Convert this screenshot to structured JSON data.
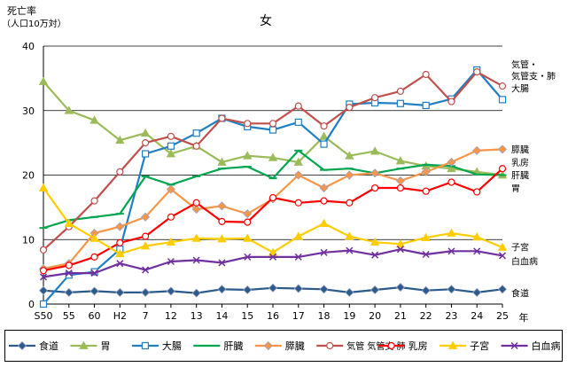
{
  "chart_data": {
    "type": "line",
    "title": "女",
    "ylabel_line1": "死亡率",
    "ylabel_line2": "（人口10万対）",
    "xlabel": "年",
    "ylim": [
      0,
      40
    ],
    "yticks": [
      0,
      10,
      20,
      30,
      40
    ],
    "categories": [
      "S50",
      "55",
      "60",
      "H2",
      "7",
      "12",
      "13",
      "14",
      "15",
      "16",
      "17",
      "18",
      "19",
      "20",
      "21",
      "22",
      "23",
      "24",
      "25"
    ],
    "series": [
      {
        "name": "食道",
        "color": "#2a5b8c",
        "marker": "diamond",
        "values": [
          2.1,
          1.8,
          2.0,
          1.8,
          1.8,
          2.0,
          1.7,
          2.3,
          2.2,
          2.5,
          2.4,
          2.3,
          1.8,
          2.2,
          2.6,
          2.1,
          2.3,
          1.8,
          2.3
        ]
      },
      {
        "name": "胃",
        "color": "#9bbb59",
        "marker": "triangle",
        "values": [
          34.5,
          30.0,
          28.5,
          25.4,
          26.5,
          23.3,
          24.5,
          22.0,
          23.0,
          22.7,
          22.0,
          26.0,
          23.0,
          23.7,
          22.2,
          21.4,
          21.0,
          20.5,
          20.0
        ]
      },
      {
        "name": "大腸",
        "color": "#1f7fc2",
        "marker": "square",
        "values": [
          0,
          4.5,
          5.0,
          8.5,
          23.3,
          24.5,
          26.5,
          28.8,
          27.5,
          27.0,
          28.2,
          24.8,
          31.0,
          31.2,
          31.1,
          30.8,
          31.8,
          36.3,
          31.7
        ]
      },
      {
        "name": "肝臓",
        "color": "#00a550",
        "marker": "dash",
        "values": [
          11.8,
          13.0,
          13.5,
          14.0,
          19.8,
          18.5,
          19.8,
          21.0,
          21.3,
          19.5,
          23.8,
          20.8,
          21.0,
          20.3,
          21.0,
          21.6,
          21.4,
          20.1,
          20.0
        ]
      },
      {
        "name": "膵臓",
        "color": "#f79646",
        "marker": "diamond",
        "values": [
          5.5,
          6.3,
          11.0,
          12.0,
          13.5,
          17.8,
          14.7,
          15.2,
          14.0,
          16.3,
          20.0,
          18.0,
          20.0,
          20.3,
          19.1,
          20.5,
          22.0,
          23.8,
          24.0
        ]
      },
      {
        "name": "気管 気管支 肺",
        "color": "#c0504d",
        "marker": "circle",
        "values": [
          8.4,
          12.0,
          16.0,
          20.5,
          25.0,
          26.0,
          24.5,
          28.8,
          28.0,
          28.0,
          30.7,
          27.6,
          30.5,
          32.0,
          33.0,
          35.6,
          31.4,
          36.0,
          33.8
        ]
      },
      {
        "name": "乳房",
        "color": "#ff0000",
        "marker": "circle",
        "values": [
          5.2,
          6.0,
          7.3,
          9.5,
          10.5,
          13.5,
          15.7,
          12.8,
          12.7,
          16.5,
          15.7,
          16.0,
          15.7,
          18.0,
          18.0,
          17.5,
          18.9,
          17.4,
          21.0
        ]
      },
      {
        "name": "子宮",
        "color": "#ffcc00",
        "marker": "triangle",
        "values": [
          18.0,
          12.5,
          10.2,
          7.8,
          9.0,
          9.6,
          10.2,
          10.1,
          10.2,
          8.0,
          10.5,
          12.5,
          10.5,
          9.6,
          9.3,
          10.3,
          11.0,
          10.4,
          8.8
        ]
      },
      {
        "name": "白血病",
        "color": "#7030a0",
        "marker": "x",
        "values": [
          4.2,
          4.8,
          4.8,
          6.3,
          5.3,
          6.6,
          6.8,
          6.4,
          7.3,
          7.3,
          7.3,
          8.0,
          8.3,
          7.6,
          8.5,
          7.7,
          8.2,
          8.2,
          7.5
        ]
      }
    ],
    "right_labels": [
      {
        "text": "気管・",
        "value": 37.2
      },
      {
        "text": "気管支・肺",
        "value": 35.4
      },
      {
        "text": "大腸",
        "value": 33.5
      },
      {
        "text": "膵臓",
        "value": 24.0
      },
      {
        "text": "乳房",
        "value": 22.0
      },
      {
        "text": "肝臓",
        "value": 20.0
      },
      {
        "text": "胃",
        "value": 18.0
      },
      {
        "text": "子宮",
        "value": 8.9
      },
      {
        "text": "白血病",
        "value": 6.7
      },
      {
        "text": "食道",
        "value": 1.7
      }
    ],
    "grid": true,
    "legend": "bottom"
  }
}
